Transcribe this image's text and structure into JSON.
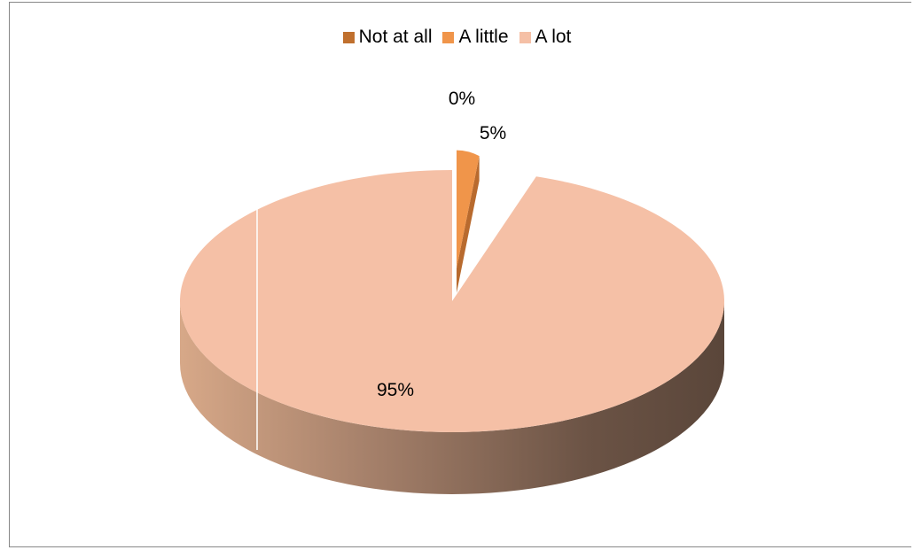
{
  "chart_data": {
    "type": "pie",
    "style": "3d-exploded",
    "legend_position": "top",
    "slices": [
      {
        "label": "Not at all",
        "value": 0,
        "data_label": "0%",
        "color": "#c0702e"
      },
      {
        "label": "A little",
        "value": 5,
        "data_label": "5%",
        "color": "#f0954a"
      },
      {
        "label": "A lot",
        "value": 95,
        "data_label": "95%",
        "color": "#f5c0a6"
      }
    ]
  }
}
